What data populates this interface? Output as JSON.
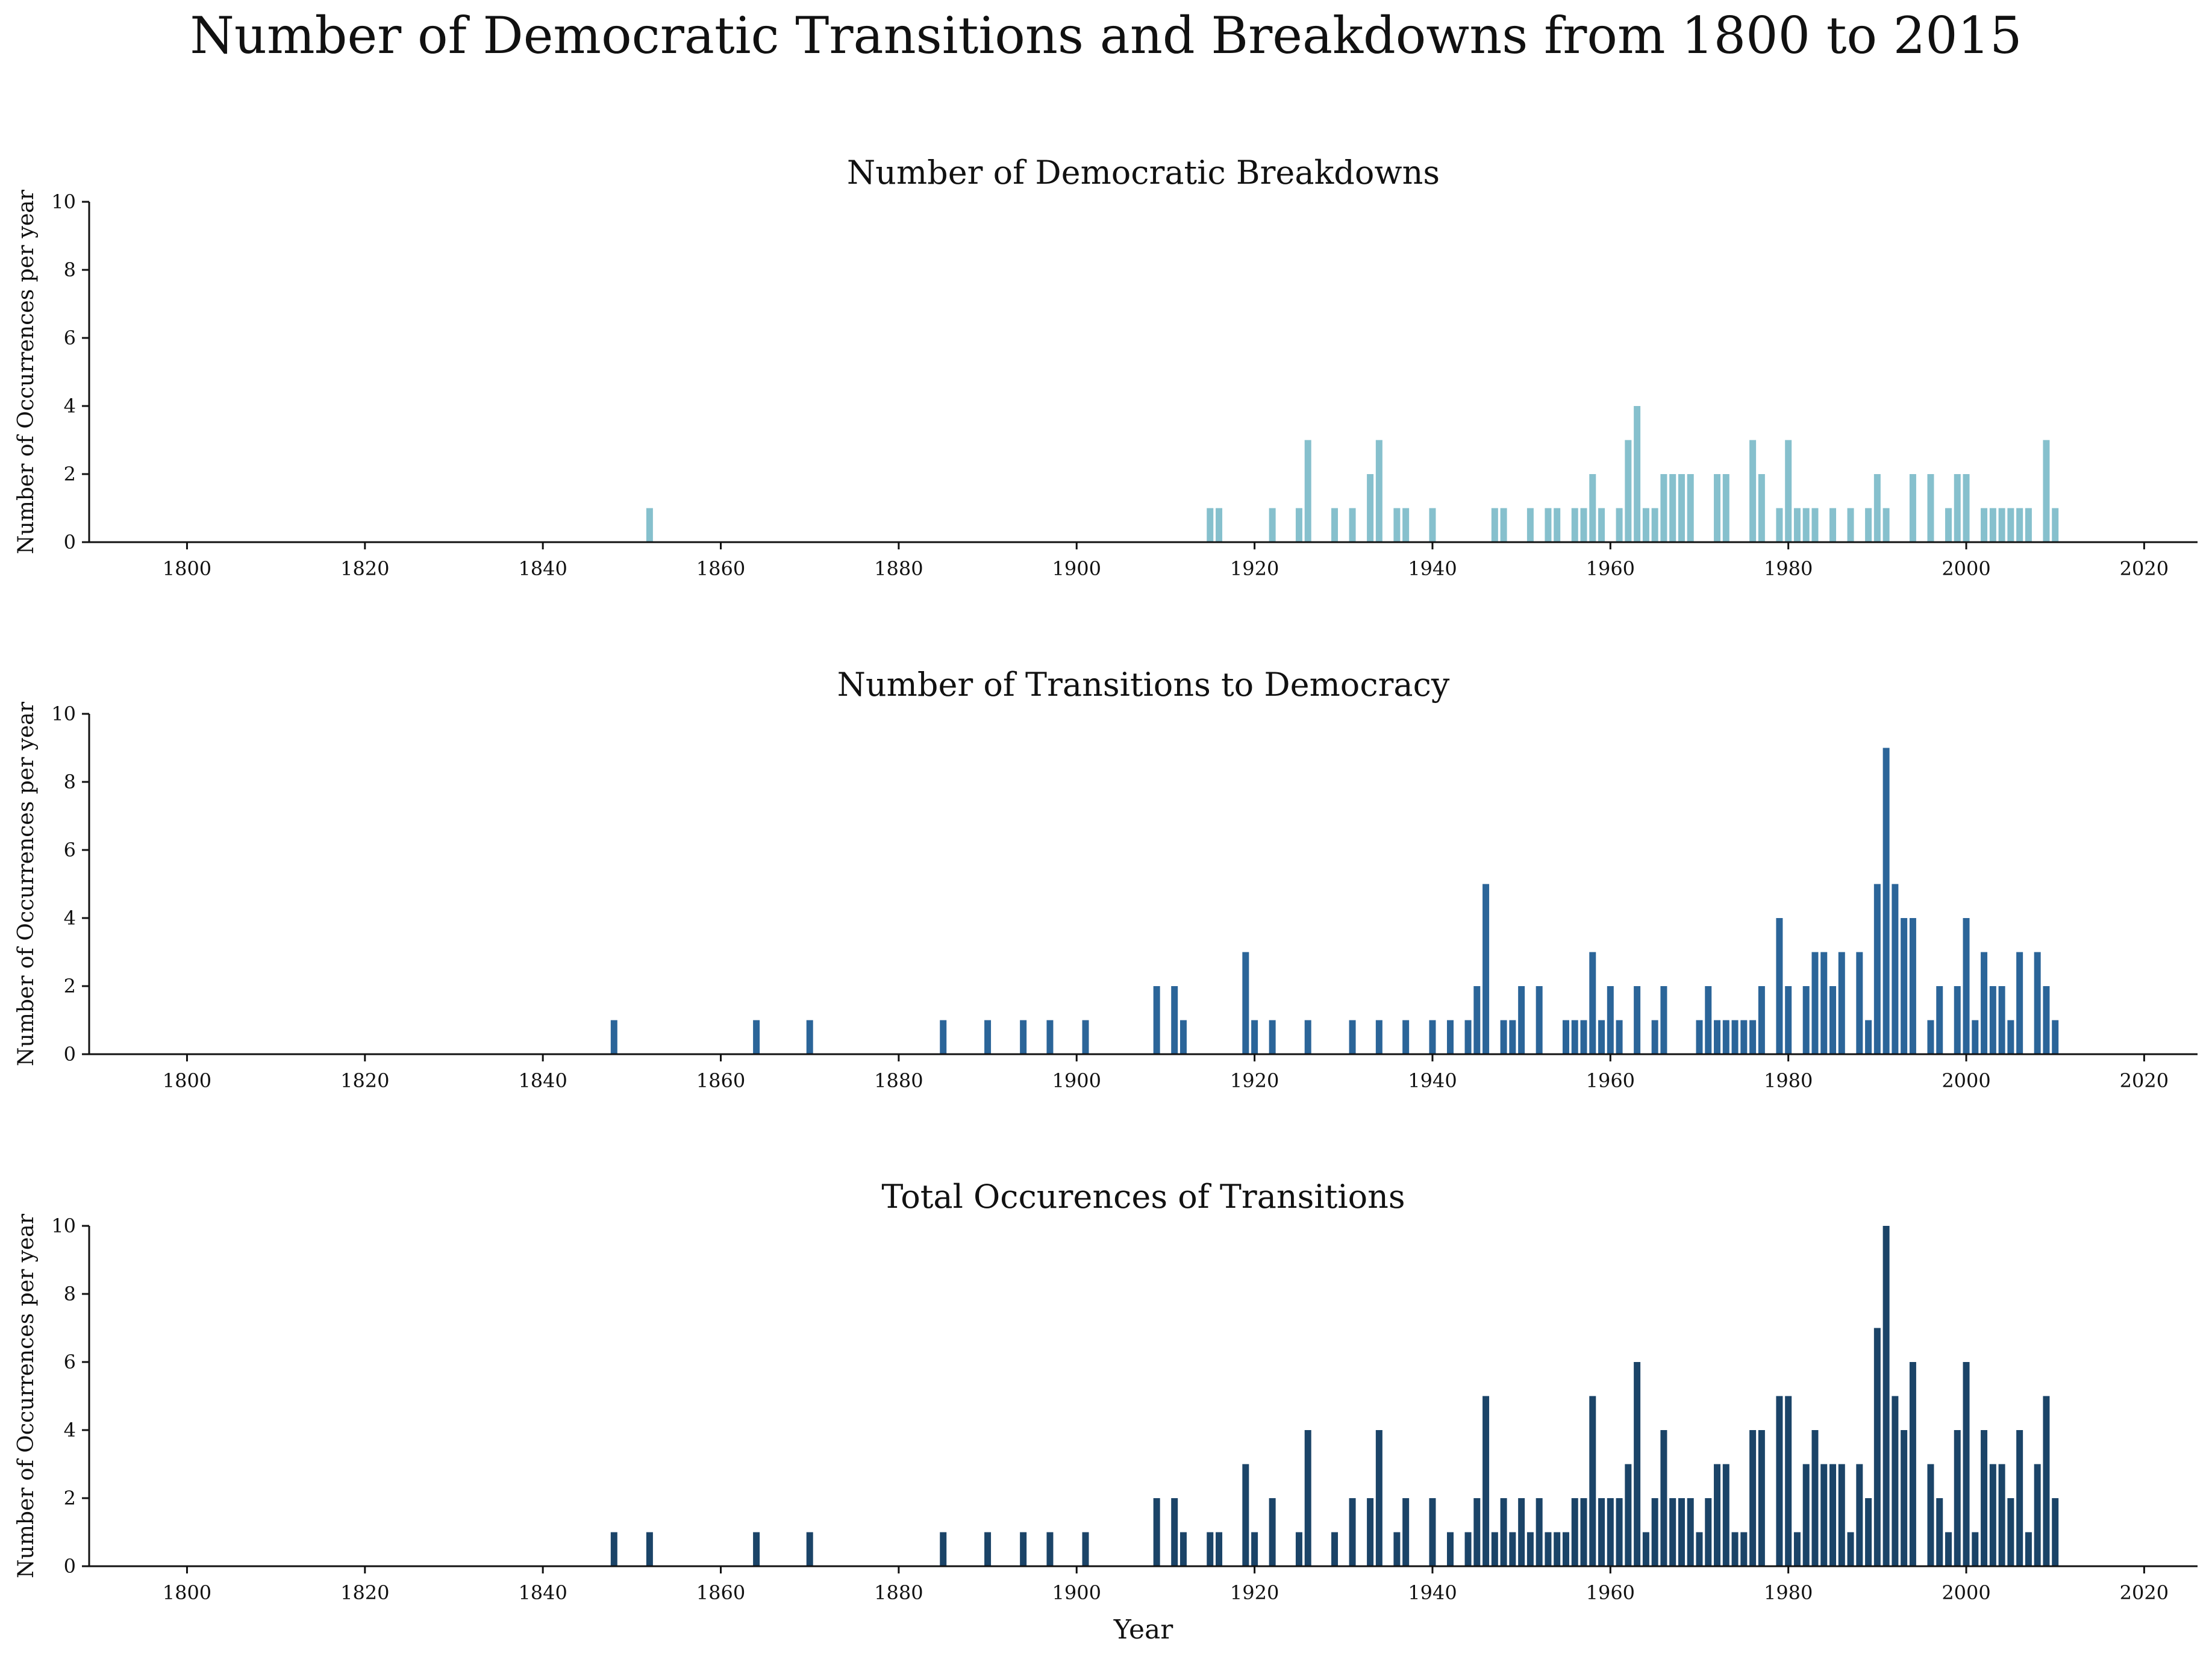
{
  "title": "Number of Democratic Transitions and Breakdowns from 1800 to 2015",
  "colors": {
    "breakdowns": "#86c0cd",
    "transitions": "#2b6599",
    "total": "#1b4468"
  },
  "chart_data": [
    {
      "type": "bar",
      "title": "Number of Democratic Breakdowns",
      "ylabel": "Number of Occurrences per year",
      "xlabel": "",
      "xlim": [
        1789,
        2026
      ],
      "ylim": [
        0,
        10
      ],
      "xticks": [
        "1800",
        "1820",
        "1840",
        "1860",
        "1880",
        "1900",
        "1920",
        "1940",
        "1960",
        "1980",
        "2000",
        "2020"
      ],
      "yticks": [
        "0",
        "2",
        "4",
        "6",
        "8",
        "10"
      ],
      "color": "#86c0cd",
      "bars": [
        {
          "x": 1852,
          "y": 1
        },
        {
          "x": 1915,
          "y": 1
        },
        {
          "x": 1916,
          "y": 1
        },
        {
          "x": 1922,
          "y": 1
        },
        {
          "x": 1925,
          "y": 1
        },
        {
          "x": 1926,
          "y": 3
        },
        {
          "x": 1929,
          "y": 1
        },
        {
          "x": 1931,
          "y": 1
        },
        {
          "x": 1933,
          "y": 2
        },
        {
          "x": 1934,
          "y": 3
        },
        {
          "x": 1936,
          "y": 1
        },
        {
          "x": 1937,
          "y": 1
        },
        {
          "x": 1940,
          "y": 1
        },
        {
          "x": 1947,
          "y": 1
        },
        {
          "x": 1948,
          "y": 1
        },
        {
          "x": 1951,
          "y": 1
        },
        {
          "x": 1953,
          "y": 1
        },
        {
          "x": 1954,
          "y": 1
        },
        {
          "x": 1956,
          "y": 1
        },
        {
          "x": 1957,
          "y": 1
        },
        {
          "x": 1958,
          "y": 2
        },
        {
          "x": 1959,
          "y": 1
        },
        {
          "x": 1961,
          "y": 1
        },
        {
          "x": 1962,
          "y": 3
        },
        {
          "x": 1963,
          "y": 4
        },
        {
          "x": 1964,
          "y": 1
        },
        {
          "x": 1965,
          "y": 1
        },
        {
          "x": 1966,
          "y": 2
        },
        {
          "x": 1967,
          "y": 2
        },
        {
          "x": 1968,
          "y": 2
        },
        {
          "x": 1969,
          "y": 2
        },
        {
          "x": 1972,
          "y": 2
        },
        {
          "x": 1973,
          "y": 2
        },
        {
          "x": 1976,
          "y": 3
        },
        {
          "x": 1977,
          "y": 2
        },
        {
          "x": 1979,
          "y": 1
        },
        {
          "x": 1980,
          "y": 3
        },
        {
          "x": 1981,
          "y": 1
        },
        {
          "x": 1982,
          "y": 1
        },
        {
          "x": 1983,
          "y": 1
        },
        {
          "x": 1985,
          "y": 1
        },
        {
          "x": 1987,
          "y": 1
        },
        {
          "x": 1989,
          "y": 1
        },
        {
          "x": 1990,
          "y": 2
        },
        {
          "x": 1991,
          "y": 1
        },
        {
          "x": 1994,
          "y": 2
        },
        {
          "x": 1996,
          "y": 2
        },
        {
          "x": 1998,
          "y": 1
        },
        {
          "x": 1999,
          "y": 2
        },
        {
          "x": 2000,
          "y": 2
        },
        {
          "x": 2002,
          "y": 1
        },
        {
          "x": 2003,
          "y": 1
        },
        {
          "x": 2004,
          "y": 1
        },
        {
          "x": 2005,
          "y": 1
        },
        {
          "x": 2006,
          "y": 1
        },
        {
          "x": 2007,
          "y": 1
        },
        {
          "x": 2009,
          "y": 3
        },
        {
          "x": 2010,
          "y": 1
        }
      ]
    },
    {
      "type": "bar",
      "title": "Number of Transitions to Democracy",
      "ylabel": "Number of Occurrences per year",
      "xlabel": "",
      "xlim": [
        1789,
        2026
      ],
      "ylim": [
        0,
        10
      ],
      "xticks": [
        "1800",
        "1820",
        "1840",
        "1860",
        "1880",
        "1900",
        "1920",
        "1940",
        "1960",
        "1980",
        "2000",
        "2020"
      ],
      "yticks": [
        "0",
        "2",
        "4",
        "6",
        "8",
        "10"
      ],
      "color": "#2b6599",
      "bars": [
        {
          "x": 1848,
          "y": 1
        },
        {
          "x": 1864,
          "y": 1
        },
        {
          "x": 1870,
          "y": 1
        },
        {
          "x": 1885,
          "y": 1
        },
        {
          "x": 1890,
          "y": 1
        },
        {
          "x": 1894,
          "y": 1
        },
        {
          "x": 1897,
          "y": 1
        },
        {
          "x": 1901,
          "y": 1
        },
        {
          "x": 1909,
          "y": 2
        },
        {
          "x": 1911,
          "y": 2
        },
        {
          "x": 1912,
          "y": 1
        },
        {
          "x": 1919,
          "y": 3
        },
        {
          "x": 1920,
          "y": 1
        },
        {
          "x": 1922,
          "y": 1
        },
        {
          "x": 1926,
          "y": 1
        },
        {
          "x": 1931,
          "y": 1
        },
        {
          "x": 1934,
          "y": 1
        },
        {
          "x": 1937,
          "y": 1
        },
        {
          "x": 1940,
          "y": 1
        },
        {
          "x": 1942,
          "y": 1
        },
        {
          "x": 1944,
          "y": 1
        },
        {
          "x": 1945,
          "y": 2
        },
        {
          "x": 1946,
          "y": 5
        },
        {
          "x": 1948,
          "y": 1
        },
        {
          "x": 1949,
          "y": 1
        },
        {
          "x": 1950,
          "y": 2
        },
        {
          "x": 1952,
          "y": 2
        },
        {
          "x": 1955,
          "y": 1
        },
        {
          "x": 1956,
          "y": 1
        },
        {
          "x": 1957,
          "y": 1
        },
        {
          "x": 1958,
          "y": 3
        },
        {
          "x": 1959,
          "y": 1
        },
        {
          "x": 1960,
          "y": 2
        },
        {
          "x": 1961,
          "y": 1
        },
        {
          "x": 1963,
          "y": 2
        },
        {
          "x": 1965,
          "y": 1
        },
        {
          "x": 1966,
          "y": 2
        },
        {
          "x": 1970,
          "y": 1
        },
        {
          "x": 1971,
          "y": 2
        },
        {
          "x": 1972,
          "y": 1
        },
        {
          "x": 1973,
          "y": 1
        },
        {
          "x": 1974,
          "y": 1
        },
        {
          "x": 1975,
          "y": 1
        },
        {
          "x": 1976,
          "y": 1
        },
        {
          "x": 1977,
          "y": 2
        },
        {
          "x": 1979,
          "y": 4
        },
        {
          "x": 1980,
          "y": 2
        },
        {
          "x": 1982,
          "y": 2
        },
        {
          "x": 1983,
          "y": 3
        },
        {
          "x": 1984,
          "y": 3
        },
        {
          "x": 1985,
          "y": 2
        },
        {
          "x": 1986,
          "y": 3
        },
        {
          "x": 1988,
          "y": 3
        },
        {
          "x": 1989,
          "y": 1
        },
        {
          "x": 1990,
          "y": 5
        },
        {
          "x": 1991,
          "y": 9
        },
        {
          "x": 1992,
          "y": 5
        },
        {
          "x": 1993,
          "y": 4
        },
        {
          "x": 1994,
          "y": 4
        },
        {
          "x": 1996,
          "y": 1
        },
        {
          "x": 1997,
          "y": 2
        },
        {
          "x": 1999,
          "y": 2
        },
        {
          "x": 2000,
          "y": 4
        },
        {
          "x": 2001,
          "y": 1
        },
        {
          "x": 2002,
          "y": 3
        },
        {
          "x": 2003,
          "y": 2
        },
        {
          "x": 2004,
          "y": 2
        },
        {
          "x": 2005,
          "y": 1
        },
        {
          "x": 2006,
          "y": 3
        },
        {
          "x": 2008,
          "y": 3
        },
        {
          "x": 2009,
          "y": 2
        },
        {
          "x": 2010,
          "y": 1
        }
      ]
    },
    {
      "type": "bar",
      "title": "Total Occurences of Transitions",
      "ylabel": "Number of Occurrences per year",
      "xlabel": "Year",
      "xlim": [
        1789,
        2026
      ],
      "ylim": [
        0,
        10
      ],
      "xticks": [
        "1800",
        "1820",
        "1840",
        "1860",
        "1880",
        "1900",
        "1920",
        "1940",
        "1960",
        "1980",
        "2000",
        "2020"
      ],
      "yticks": [
        "0",
        "2",
        "4",
        "6",
        "8",
        "10"
      ],
      "color": "#1b4468",
      "bars": [
        {
          "x": 1848,
          "y": 1
        },
        {
          "x": 1852,
          "y": 1
        },
        {
          "x": 1864,
          "y": 1
        },
        {
          "x": 1870,
          "y": 1
        },
        {
          "x": 1885,
          "y": 1
        },
        {
          "x": 1890,
          "y": 1
        },
        {
          "x": 1894,
          "y": 1
        },
        {
          "x": 1897,
          "y": 1
        },
        {
          "x": 1901,
          "y": 1
        },
        {
          "x": 1909,
          "y": 2
        },
        {
          "x": 1911,
          "y": 2
        },
        {
          "x": 1912,
          "y": 1
        },
        {
          "x": 1915,
          "y": 1
        },
        {
          "x": 1916,
          "y": 1
        },
        {
          "x": 1919,
          "y": 3
        },
        {
          "x": 1920,
          "y": 1
        },
        {
          "x": 1922,
          "y": 2
        },
        {
          "x": 1925,
          "y": 1
        },
        {
          "x": 1926,
          "y": 4
        },
        {
          "x": 1929,
          "y": 1
        },
        {
          "x": 1931,
          "y": 2
        },
        {
          "x": 1933,
          "y": 2
        },
        {
          "x": 1934,
          "y": 4
        },
        {
          "x": 1936,
          "y": 1
        },
        {
          "x": 1937,
          "y": 2
        },
        {
          "x": 1940,
          "y": 2
        },
        {
          "x": 1942,
          "y": 1
        },
        {
          "x": 1944,
          "y": 1
        },
        {
          "x": 1945,
          "y": 2
        },
        {
          "x": 1946,
          "y": 5
        },
        {
          "x": 1947,
          "y": 1
        },
        {
          "x": 1948,
          "y": 2
        },
        {
          "x": 1949,
          "y": 1
        },
        {
          "x": 1950,
          "y": 2
        },
        {
          "x": 1951,
          "y": 1
        },
        {
          "x": 1952,
          "y": 2
        },
        {
          "x": 1953,
          "y": 1
        },
        {
          "x": 1954,
          "y": 1
        },
        {
          "x": 1955,
          "y": 1
        },
        {
          "x": 1956,
          "y": 2
        },
        {
          "x": 1957,
          "y": 2
        },
        {
          "x": 1958,
          "y": 5
        },
        {
          "x": 1959,
          "y": 2
        },
        {
          "x": 1960,
          "y": 2
        },
        {
          "x": 1961,
          "y": 2
        },
        {
          "x": 1962,
          "y": 3
        },
        {
          "x": 1963,
          "y": 6
        },
        {
          "x": 1964,
          "y": 1
        },
        {
          "x": 1965,
          "y": 2
        },
        {
          "x": 1966,
          "y": 4
        },
        {
          "x": 1967,
          "y": 2
        },
        {
          "x": 1968,
          "y": 2
        },
        {
          "x": 1969,
          "y": 2
        },
        {
          "x": 1970,
          "y": 1
        },
        {
          "x": 1971,
          "y": 2
        },
        {
          "x": 1972,
          "y": 3
        },
        {
          "x": 1973,
          "y": 3
        },
        {
          "x": 1974,
          "y": 1
        },
        {
          "x": 1975,
          "y": 1
        },
        {
          "x": 1976,
          "y": 4
        },
        {
          "x": 1977,
          "y": 4
        },
        {
          "x": 1979,
          "y": 5
        },
        {
          "x": 1980,
          "y": 5
        },
        {
          "x": 1981,
          "y": 1
        },
        {
          "x": 1982,
          "y": 3
        },
        {
          "x": 1983,
          "y": 4
        },
        {
          "x": 1984,
          "y": 3
        },
        {
          "x": 1985,
          "y": 3
        },
        {
          "x": 1986,
          "y": 3
        },
        {
          "x": 1987,
          "y": 1
        },
        {
          "x": 1988,
          "y": 3
        },
        {
          "x": 1989,
          "y": 2
        },
        {
          "x": 1990,
          "y": 7
        },
        {
          "x": 1991,
          "y": 10
        },
        {
          "x": 1992,
          "y": 5
        },
        {
          "x": 1993,
          "y": 4
        },
        {
          "x": 1994,
          "y": 6
        },
        {
          "x": 1996,
          "y": 3
        },
        {
          "x": 1997,
          "y": 2
        },
        {
          "x": 1998,
          "y": 1
        },
        {
          "x": 1999,
          "y": 4
        },
        {
          "x": 2000,
          "y": 6
        },
        {
          "x": 2001,
          "y": 1
        },
        {
          "x": 2002,
          "y": 4
        },
        {
          "x": 2003,
          "y": 3
        },
        {
          "x": 2004,
          "y": 3
        },
        {
          "x": 2005,
          "y": 2
        },
        {
          "x": 2006,
          "y": 4
        },
        {
          "x": 2007,
          "y": 1
        },
        {
          "x": 2008,
          "y": 3
        },
        {
          "x": 2009,
          "y": 5
        },
        {
          "x": 2010,
          "y": 2
        }
      ]
    }
  ]
}
